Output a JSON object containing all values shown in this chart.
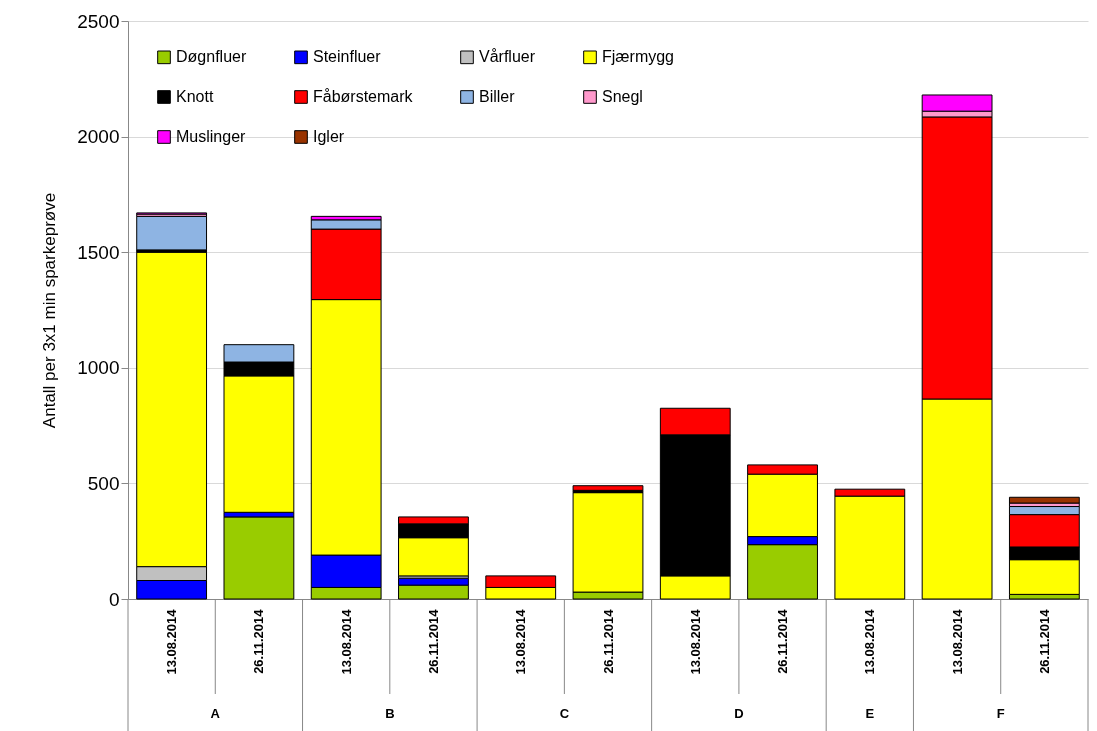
{
  "chart_data": {
    "type": "bar",
    "stacked": true,
    "ylabel": "Antall per 3x1 min sparkeprøve",
    "categories": [
      "13.08.2014",
      "26.11.2014",
      "13.08.2014",
      "26.11.2014",
      "13.08.2014",
      "26.11.2014",
      "13.08.2014",
      "26.11.2014",
      "13.08.2014",
      "13.08.2014",
      "26.11.2014"
    ],
    "annotations": [
      "A",
      "B",
      "C",
      "D",
      "E",
      "F"
    ],
    "ylim": [
      0,
      2500
    ],
    "yticks": [
      0,
      500,
      1000,
      1500,
      2000,
      2500
    ],
    "grid": "y",
    "legend": "top left",
    "series": [
      {
        "name": "Døgnfluer",
        "color": "#99cc00",
        "values": [
          null,
          355,
          50,
          60,
          null,
          30,
          null,
          235,
          null,
          null,
          20
        ]
      },
      {
        "name": "Steinfluer",
        "color": "#0000ff",
        "values": [
          80,
          20,
          140,
          30,
          null,
          null,
          null,
          35,
          null,
          null,
          null
        ]
      },
      {
        "name": "Vårfluer",
        "color": "#c0c0c0",
        "values": [
          60,
          null,
          null,
          10,
          null,
          null,
          null,
          null,
          null,
          null,
          null
        ]
      },
      {
        "name": "Fjærmygg",
        "color": "#ffff00",
        "values": [
          1360,
          590,
          1105,
          165,
          50,
          430,
          100,
          270,
          445,
          865,
          150
        ]
      },
      {
        "name": "Knott",
        "color": "#000000",
        "values": [
          10,
          60,
          null,
          60,
          null,
          10,
          610,
          null,
          null,
          null,
          55
        ]
      },
      {
        "name": "Fåbørstemark",
        "color": "#ff0000",
        "values": [
          null,
          null,
          305,
          30,
          50,
          20,
          115,
          40,
          30,
          1220,
          140
        ]
      },
      {
        "name": "Biller",
        "color": "#8eb4e3",
        "values": [
          145,
          75,
          40,
          null,
          null,
          null,
          null,
          null,
          null,
          null,
          35
        ]
      },
      {
        "name": "Snegl",
        "color": "#ff99cc",
        "values": [
          10,
          null,
          null,
          null,
          null,
          null,
          null,
          null,
          null,
          25,
          15
        ]
      },
      {
        "name": "Muslinger",
        "color": "#ff00ff",
        "values": [
          5,
          null,
          15,
          null,
          null,
          null,
          null,
          null,
          null,
          70,
          null
        ]
      },
      {
        "name": "Igler",
        "color": "#993300",
        "values": [
          null,
          null,
          null,
          null,
          null,
          null,
          null,
          null,
          null,
          null,
          25
        ]
      }
    ]
  }
}
